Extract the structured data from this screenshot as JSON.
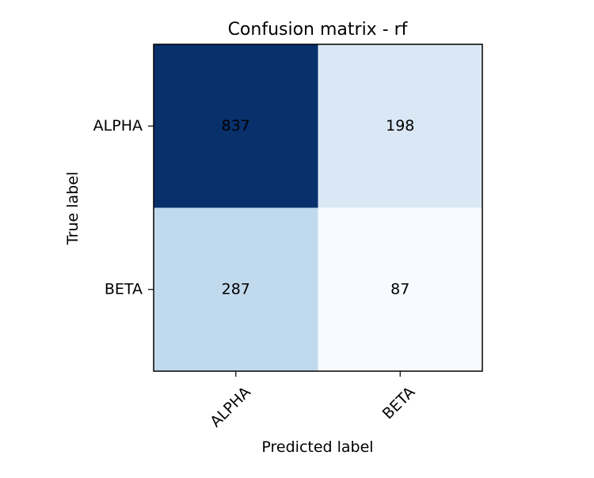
{
  "chart_data": {
    "type": "heatmap",
    "title": "Confusion matrix - rf",
    "xlabel": "Predicted label",
    "ylabel": "True label",
    "x_categories": [
      "ALPHA",
      "BETA"
    ],
    "y_categories": [
      "ALPHA",
      "BETA"
    ],
    "values": [
      [
        837,
        198
      ],
      [
        287,
        87
      ]
    ],
    "colormap": "Blues",
    "grid": false,
    "legend": false,
    "text_colors": {
      "dark_cell": "#ffffff",
      "light_cell": "#000000"
    }
  }
}
